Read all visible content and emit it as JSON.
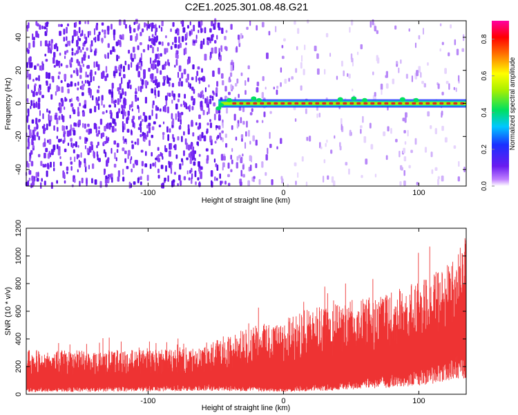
{
  "title": "C2E1.2025.301.08.48.G21",
  "colors": {
    "snr_fill": "#ee3333",
    "ridge": "#dd2222",
    "noise_base": "#7a20f0"
  },
  "chart_data": [
    {
      "type": "heatmap",
      "xlabel": "Height of straight line (km)",
      "ylabel": "Frequency (Hz)",
      "xlim": [
        -190,
        135
      ],
      "ylim": [
        -50,
        50
      ],
      "xticks": [
        -100,
        0,
        100
      ],
      "yticks": [
        -40,
        -20,
        0,
        20,
        40
      ],
      "description_features": {
        "ridge_start_km": -48,
        "ridge_frequency_hz": 0,
        "noise_strong_below_km": -45
      },
      "colorbar": {
        "label": "Normalized spectral amplitude",
        "range": [
          0.0,
          0.9
        ],
        "ticks": [
          0.0,
          0.2,
          0.4,
          0.6,
          0.8
        ]
      }
    },
    {
      "type": "area",
      "xlabel": "Height of straight line (km)",
      "ylabel": "SNR (10 * v/v)",
      "xlim": [
        -190,
        135
      ],
      "ylim": [
        0,
        1200
      ],
      "xticks": [
        -100,
        0,
        100
      ],
      "yticks": [
        0,
        200,
        400,
        600,
        800,
        1000,
        1200
      ],
      "envelope_upper": [
        {
          "x": -190,
          "y": 320
        },
        {
          "x": -150,
          "y": 320
        },
        {
          "x": -100,
          "y": 320
        },
        {
          "x": -60,
          "y": 330
        },
        {
          "x": -45,
          "y": 420
        },
        {
          "x": -20,
          "y": 500
        },
        {
          "x": 0,
          "y": 560
        },
        {
          "x": 20,
          "y": 620
        },
        {
          "x": 50,
          "y": 680
        },
        {
          "x": 80,
          "y": 740
        },
        {
          "x": 100,
          "y": 820
        },
        {
          "x": 115,
          "y": 900
        },
        {
          "x": 125,
          "y": 1000
        },
        {
          "x": 132,
          "y": 1150
        }
      ],
      "envelope_lower": [
        {
          "x": -190,
          "y": 40
        },
        {
          "x": -100,
          "y": 50
        },
        {
          "x": -50,
          "y": 60
        },
        {
          "x": 0,
          "y": 40
        },
        {
          "x": 50,
          "y": 80
        },
        {
          "x": 100,
          "y": 150
        },
        {
          "x": 132,
          "y": 250
        }
      ]
    }
  ]
}
